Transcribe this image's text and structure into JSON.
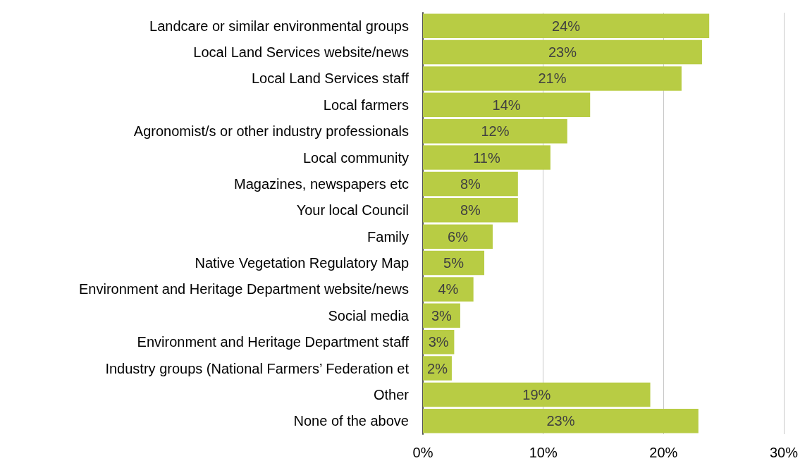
{
  "chart_data": {
    "type": "bar",
    "orientation": "horizontal",
    "categories": [
      "Landcare or similar environmental groups",
      "Local Land Services website/news",
      "Local Land Services staff",
      "Local farmers",
      "Agronomist/s or other industry professionals",
      "Local community",
      "Magazines, newspapers etc",
      "Your local Council",
      "Family",
      "Native Vegetation Regulatory Map",
      "Environment and Heritage Department website/news",
      "Social media",
      "Environment and Heritage Department staff",
      "Industry groups (National Farmers’ Federation et",
      "Other",
      "None of the above"
    ],
    "values": [
      23.8,
      23.2,
      21.5,
      13.9,
      12.0,
      10.6,
      7.9,
      7.9,
      5.8,
      5.1,
      4.2,
      3.1,
      2.6,
      2.4,
      18.9,
      22.9
    ],
    "value_labels": [
      "24%",
      "23%",
      "21%",
      "14%",
      "12%",
      "11%",
      "8%",
      "8%",
      "6%",
      "5%",
      "4%",
      "3%",
      "3%",
      "2%",
      "19%",
      "23%"
    ],
    "color": "#b8cc44",
    "xlim": [
      0,
      30
    ],
    "xticks": [
      {
        "value": 0,
        "label": "0%"
      },
      {
        "value": 10,
        "label": "10%"
      },
      {
        "value": 20,
        "label": "20%"
      },
      {
        "value": 30,
        "label": "30%"
      }
    ],
    "grid": "x"
  }
}
